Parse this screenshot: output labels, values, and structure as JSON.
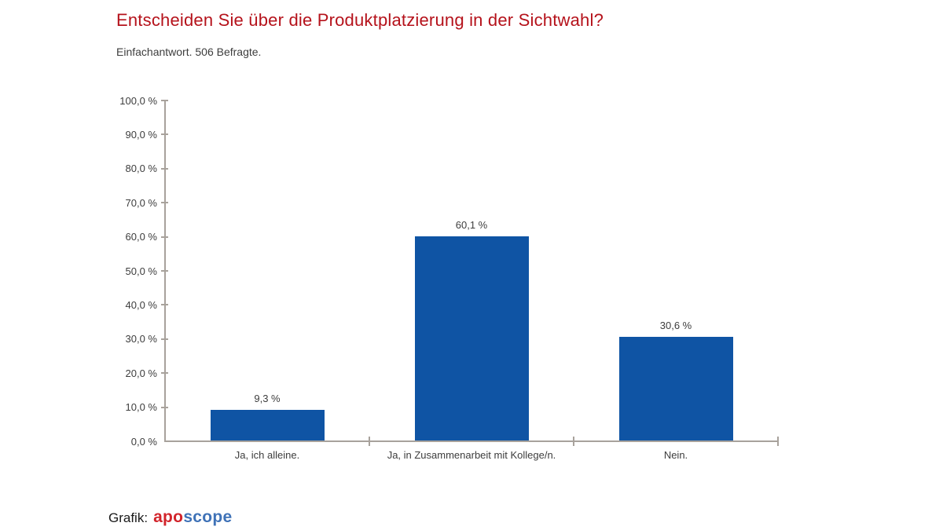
{
  "chart_data": {
    "type": "bar",
    "title": "Entscheiden Sie über die Produktplatzierung in der Sichtwahl?",
    "title_color": "#b5121b",
    "subtitle": "Einfachantwort. 506 Befragte.",
    "categories": [
      "Ja, ich alleine.",
      "Ja, in Zusammenarbeit mit Kollege/n.",
      "Nein."
    ],
    "values": [
      9.3,
      60.1,
      30.6
    ],
    "value_labels": [
      "9,3 %",
      "60,1 %",
      "30,6 %"
    ],
    "ylabel": "",
    "xlabel": "",
    "ylim": [
      0,
      100
    ],
    "ytick_step": 10,
    "ytick_labels": [
      "0,0 %",
      "10,0 %",
      "20,0 %",
      "30,0 %",
      "40,0 %",
      "50,0 %",
      "60,0 %",
      "70,0 %",
      "80,0 %",
      "90,0 %",
      "100,0 %"
    ],
    "grid": false,
    "legend": null,
    "bar_color": "#0f54a4",
    "axis_color": "#a8a29c"
  },
  "footer": {
    "label": "Grafik:",
    "logo": {
      "part1": "apo",
      "part1_color": "#d2242b",
      "part2": "scope",
      "part2_color": "#3f72b7"
    }
  }
}
